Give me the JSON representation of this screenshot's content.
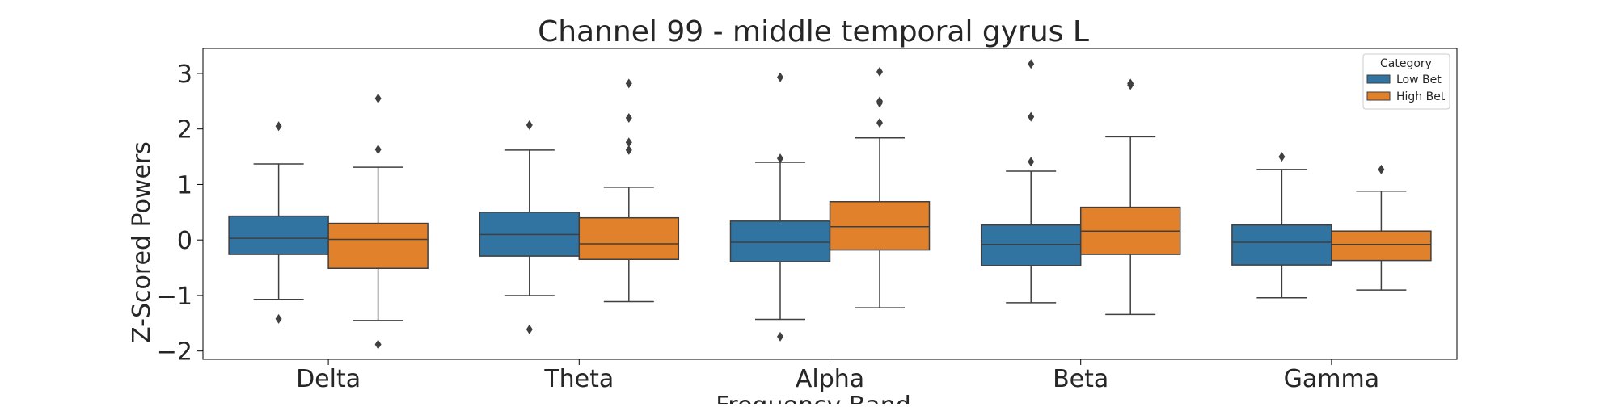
{
  "chart_data": {
    "type": "box",
    "title": "Channel 99 - middle temporal gyrus L",
    "xlabel": "Frequency Band",
    "ylabel": "Z-Scored Powers",
    "categories": [
      "Delta",
      "Theta",
      "Alpha",
      "Beta",
      "Gamma"
    ],
    "ylim": [
      -2.15,
      3.45
    ],
    "yticks": [
      3,
      2,
      1,
      0,
      -1,
      -2
    ],
    "ytick_labels": [
      "3",
      "2",
      "1",
      "0",
      "−1",
      "−2"
    ],
    "legend": {
      "title": "Category",
      "placement": "top-right"
    },
    "series": [
      {
        "name": "Low Bet",
        "color": "#3274a1",
        "boxes": [
          {
            "whislo": -1.07,
            "q1": -0.26,
            "med": 0.03,
            "q3": 0.43,
            "whishi": 1.37,
            "fliers": [
              2.05,
              -1.42
            ]
          },
          {
            "whislo": -1.0,
            "q1": -0.29,
            "med": 0.1,
            "q3": 0.5,
            "whishi": 1.62,
            "fliers": [
              2.07,
              -1.61
            ]
          },
          {
            "whislo": -1.43,
            "q1": -0.39,
            "med": -0.04,
            "q3": 0.34,
            "whishi": 1.4,
            "fliers": [
              2.93,
              1.47,
              -1.74
            ]
          },
          {
            "whislo": -1.13,
            "q1": -0.46,
            "med": -0.08,
            "q3": 0.27,
            "whishi": 1.24,
            "fliers": [
              3.17,
              2.22,
              1.41
            ]
          },
          {
            "whislo": -1.04,
            "q1": -0.45,
            "med": -0.04,
            "q3": 0.27,
            "whishi": 1.27,
            "fliers": [
              1.5
            ]
          }
        ]
      },
      {
        "name": "High Bet",
        "color": "#e1812c",
        "boxes": [
          {
            "whislo": -1.45,
            "q1": -0.51,
            "med": 0.01,
            "q3": 0.3,
            "whishi": 1.31,
            "fliers": [
              2.55,
              1.63,
              -1.88
            ]
          },
          {
            "whislo": -1.11,
            "q1": -0.35,
            "med": -0.07,
            "q3": 0.4,
            "whishi": 0.95,
            "fliers": [
              2.82,
              2.2,
              1.76,
              1.62
            ]
          },
          {
            "whislo": -1.22,
            "q1": -0.18,
            "med": 0.24,
            "q3": 0.69,
            "whishi": 1.84,
            "fliers": [
              3.03,
              2.5,
              2.47,
              2.11
            ]
          },
          {
            "whislo": -1.34,
            "q1": -0.26,
            "med": 0.16,
            "q3": 0.59,
            "whishi": 1.86,
            "fliers": [
              2.82,
              2.79
            ]
          },
          {
            "whislo": -0.9,
            "q1": -0.37,
            "med": -0.08,
            "q3": 0.16,
            "whishi": 0.88,
            "fliers": [
              1.27
            ]
          }
        ]
      }
    ]
  }
}
